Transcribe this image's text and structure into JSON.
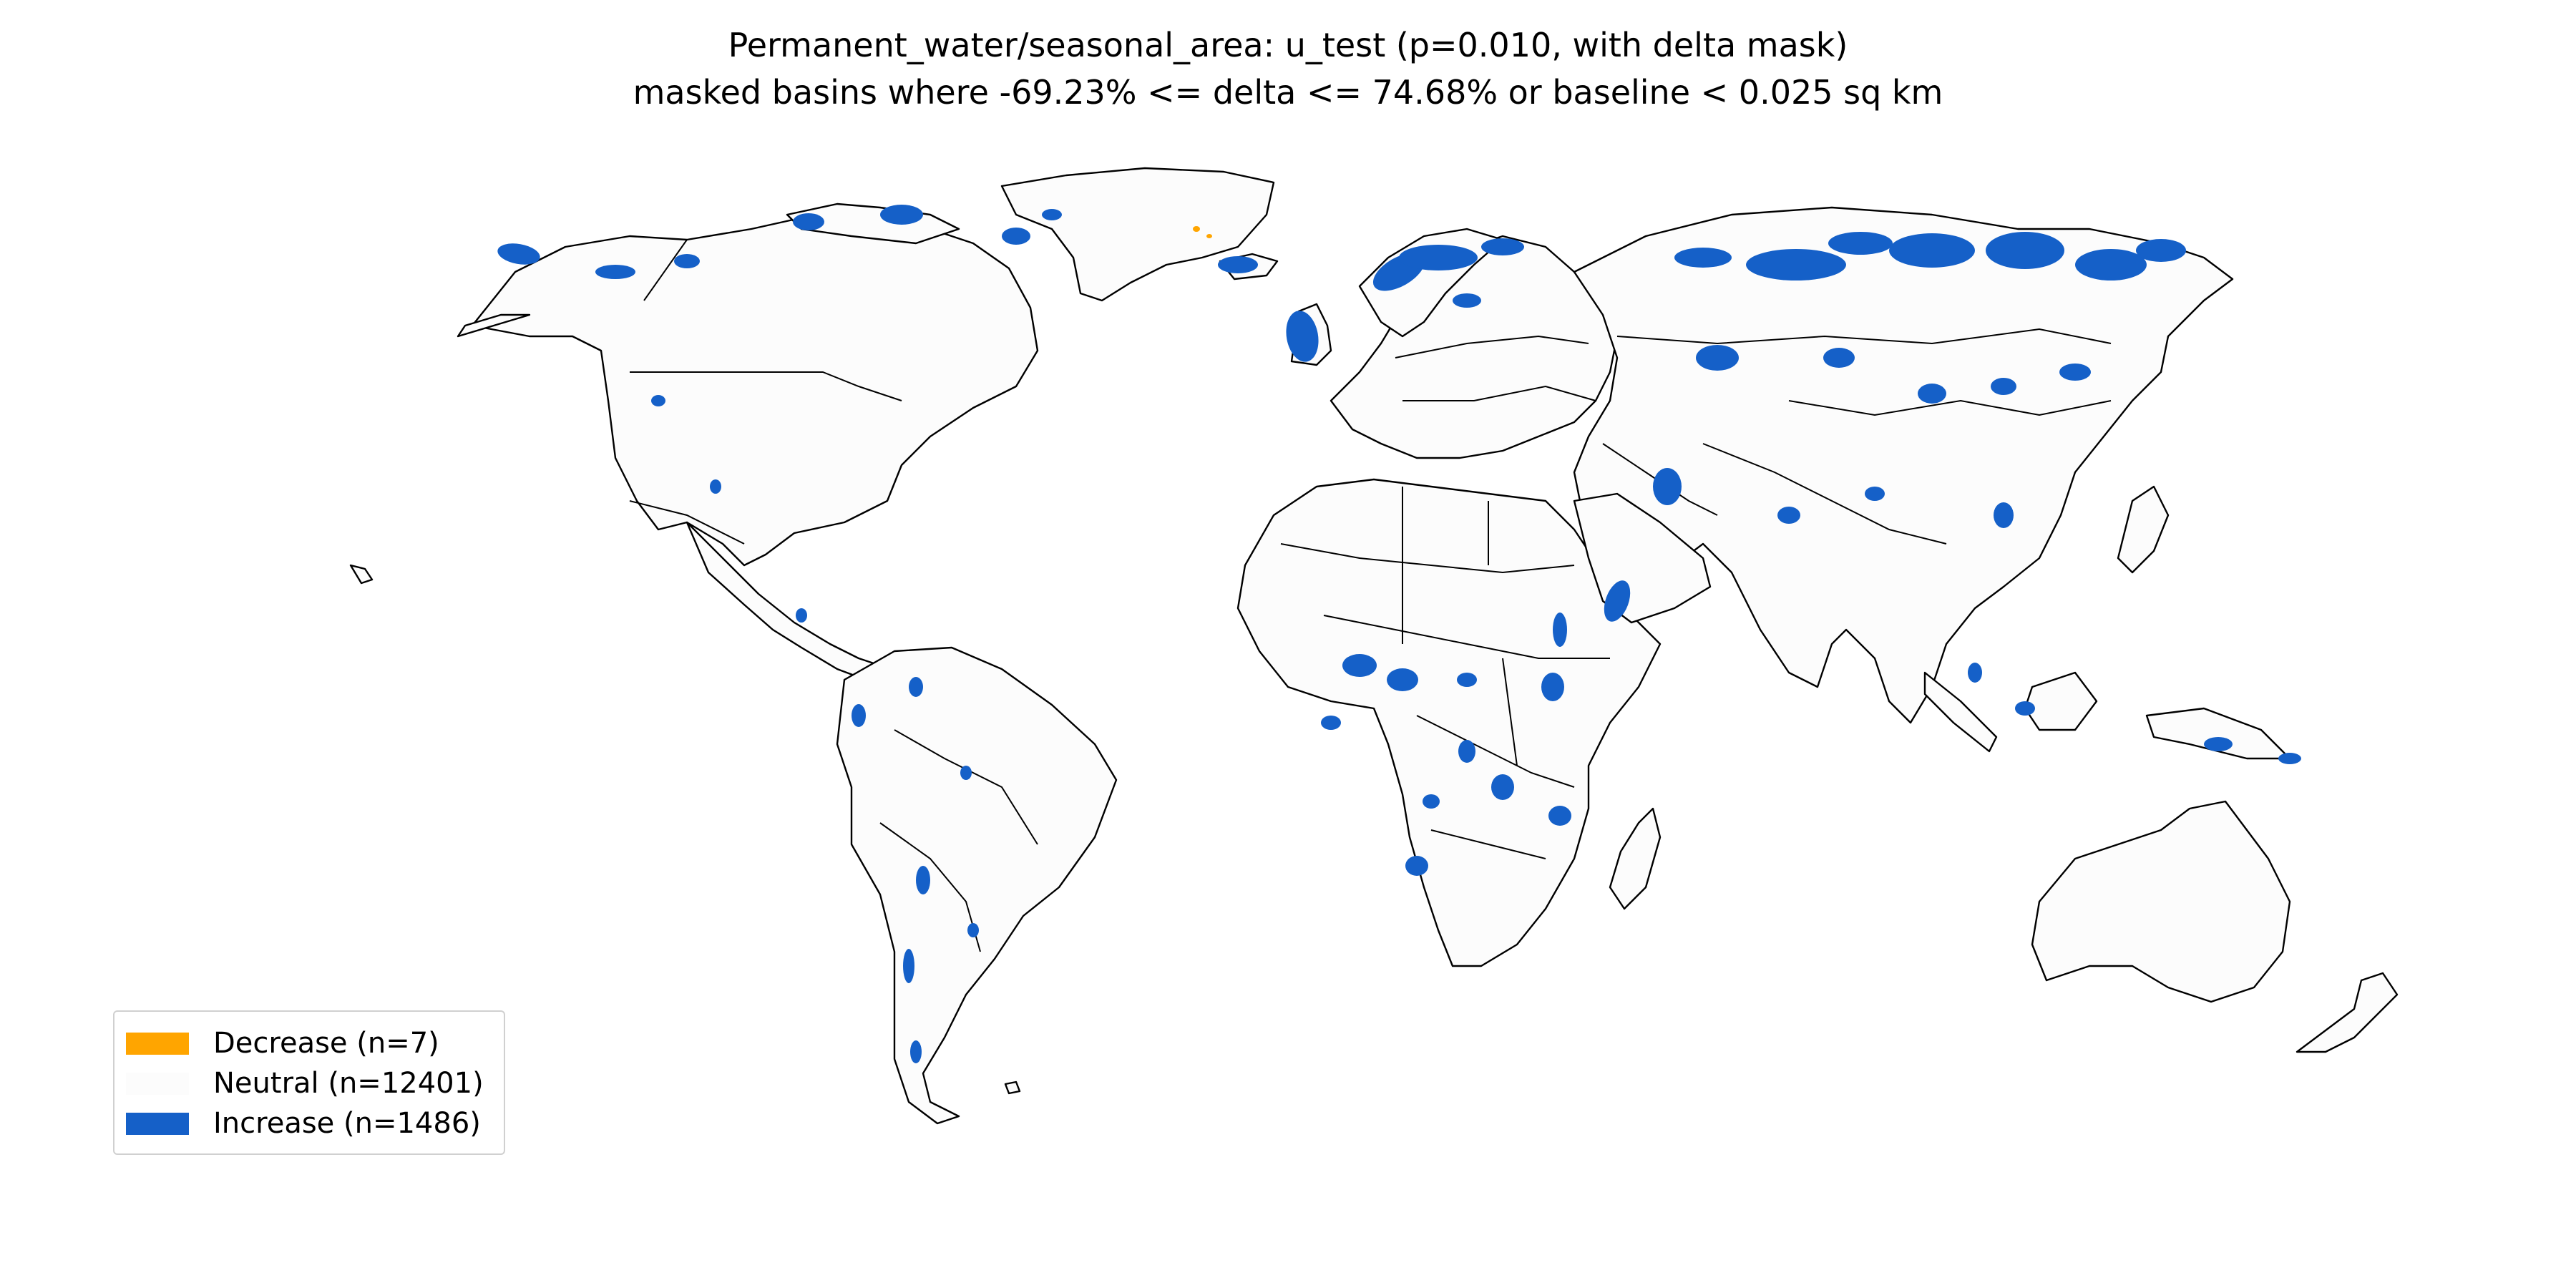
{
  "title": {
    "line1": "Permanent_water/seasonal_area: u_test (p=0.010, with delta mask)",
    "line2": "masked basins where -69.23% <= delta <= 74.68% or baseline < 0.025 sq km"
  },
  "legend": {
    "placement": "lower-left",
    "items": [
      {
        "label": "Decrease (n=7)",
        "color": "#ffa500"
      },
      {
        "label": "Neutral (n=12401)",
        "color": "#fcfcfc"
      },
      {
        "label": "Increase (n=1486)",
        "color": "#1560c8"
      }
    ]
  },
  "colors": {
    "land": "#fcfcfc",
    "outline": "#000000",
    "decrease": "#ffa500",
    "increase": "#1560c8"
  }
}
